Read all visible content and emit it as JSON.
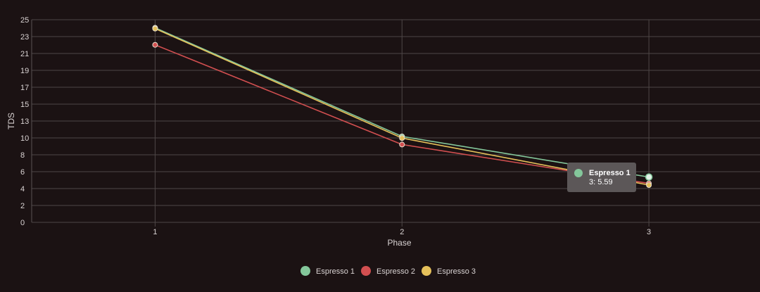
{
  "chart_data": {
    "type": "line",
    "x": [
      1,
      2,
      3
    ],
    "xlabel": "Phase",
    "ylabel": "TDS",
    "ylim": [
      0,
      25
    ],
    "y_ticks": [
      0,
      2,
      4,
      6,
      8,
      10,
      13,
      15,
      17,
      19,
      21,
      23,
      25
    ],
    "grid": true,
    "legend_position": "bottom",
    "series": [
      {
        "name": "Espresso 1",
        "color": "#84c79b",
        "values": [
          24.0,
          10.6,
          5.59
        ]
      },
      {
        "name": "Espresso 2",
        "color": "#d24f50",
        "values": [
          21.9,
          9.6,
          4.8
        ]
      },
      {
        "name": "Espresso 3",
        "color": "#e5c05a",
        "values": [
          23.9,
          10.4,
          4.6
        ]
      }
    ],
    "tooltip": {
      "series_index": 0,
      "point_index": 2,
      "title": "Espresso 1",
      "text": "3: 5.59"
    }
  }
}
